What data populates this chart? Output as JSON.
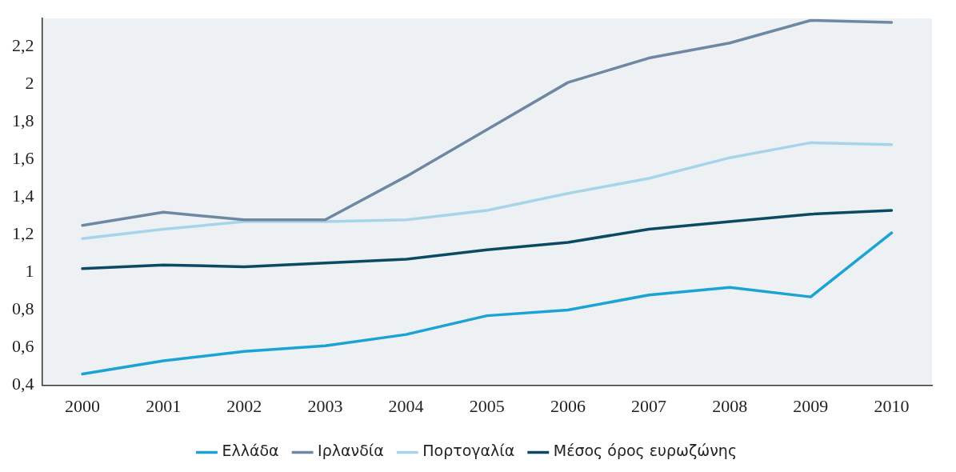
{
  "chart_data": {
    "type": "line",
    "categories": [
      "2000",
      "2001",
      "2002",
      "2003",
      "2004",
      "2005",
      "2006",
      "2007",
      "2008",
      "2009",
      "2010"
    ],
    "series": [
      {
        "name": "Ελλάδα",
        "color": "#1aa3d4",
        "values": [
          0.46,
          0.53,
          0.58,
          0.61,
          0.67,
          0.77,
          0.8,
          0.88,
          0.92,
          0.87,
          1.21
        ]
      },
      {
        "name": "Ιρλανδία",
        "color": "#6e88a3",
        "values": [
          1.25,
          1.32,
          1.28,
          1.28,
          1.51,
          1.76,
          2.01,
          2.14,
          2.22,
          2.34,
          2.33
        ]
      },
      {
        "name": "Πορτογαλία",
        "color": "#a8d4ea",
        "values": [
          1.18,
          1.23,
          1.27,
          1.27,
          1.28,
          1.33,
          1.42,
          1.5,
          1.61,
          1.69,
          1.68
        ]
      },
      {
        "name": "Μέσος όρος ευρωζώνης",
        "color": "#0c4a63",
        "values": [
          1.02,
          1.04,
          1.03,
          1.05,
          1.07,
          1.12,
          1.16,
          1.23,
          1.27,
          1.31,
          1.33
        ]
      }
    ],
    "ylim": [
      0.4,
      2.35
    ],
    "yticks": [
      {
        "value": 0.4,
        "label": "0,4"
      },
      {
        "value": 0.6,
        "label": "0,6"
      },
      {
        "value": 0.8,
        "label": "0,8"
      },
      1,
      {
        "value": 1.2,
        "label": "1,2"
      },
      {
        "value": 1.4,
        "label": "1,4"
      },
      {
        "value": 1.6,
        "label": "1,6"
      },
      {
        "value": 1.8,
        "label": "1,8"
      },
      2,
      {
        "value": 2.2,
        "label": "2,2"
      }
    ],
    "grid": false,
    "legend": "bottom",
    "marker": "none",
    "line_style": "solid"
  }
}
